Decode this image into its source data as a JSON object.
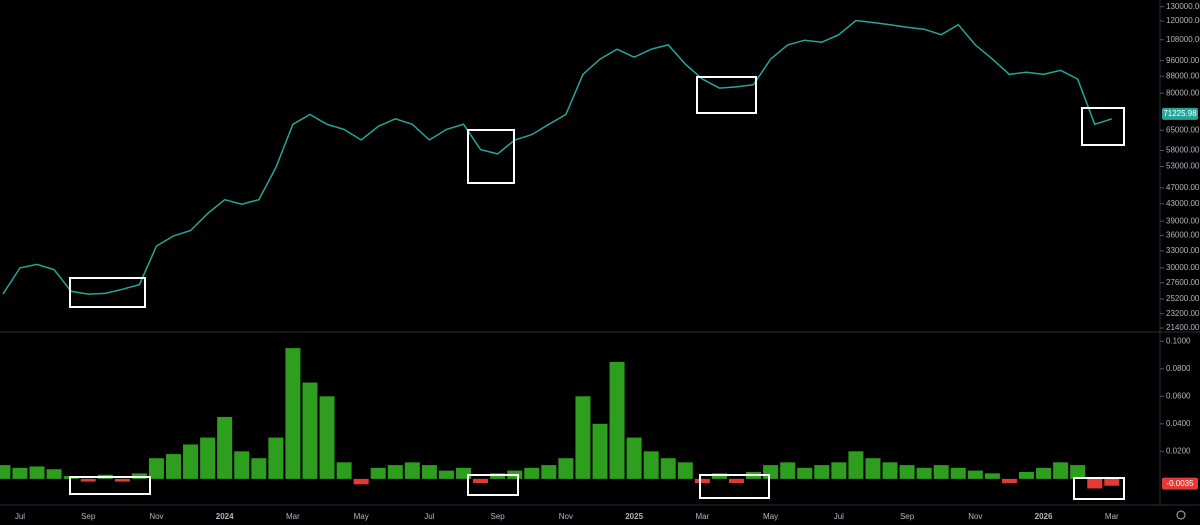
{
  "chart_data": [
    {
      "type": "line",
      "log_scale": true,
      "grid": false,
      "color": "#26a69a",
      "values": [
        25900,
        30000,
        30600,
        29700,
        26300,
        25900,
        26000,
        26600,
        27300,
        33900,
        35900,
        37000,
        40700,
        44000,
        42900,
        44000,
        52700,
        67200,
        71000,
        67200,
        65300,
        61500,
        66400,
        69300,
        67200,
        61500,
        65300,
        67200,
        58300,
        56900,
        61500,
        63400,
        67200,
        71000,
        88900,
        96900,
        102400,
        97900,
        102400,
        104900,
        94200,
        86600,
        82300,
        82900,
        83900,
        96900,
        104900,
        107700,
        106500,
        111100,
        120300,
        119000,
        117500,
        115800,
        114600,
        111100,
        117500,
        104900,
        96900,
        88900,
        90000,
        88900,
        91000,
        86600,
        67200,
        69300
      ],
      "ylim": [
        21050,
        135000
      ],
      "yticks": [
        {
          "value": 130000,
          "label": "130000.00"
        },
        {
          "value": 120000,
          "label": "120000.00"
        },
        {
          "value": 108000,
          "label": "108000.00"
        },
        {
          "value": 96000,
          "label": "96000.00"
        },
        {
          "value": 88000,
          "label": "88000.00"
        },
        {
          "value": 80000,
          "label": "80000.00"
        },
        {
          "value": 65000,
          "label": "65000.00"
        },
        {
          "value": 58000,
          "label": "58000.00"
        },
        {
          "value": 53000,
          "label": "53000.00"
        },
        {
          "value": 47000,
          "label": "47000.00"
        },
        {
          "value": 43000,
          "label": "43000.00"
        },
        {
          "value": 39000,
          "label": "39000.00"
        },
        {
          "value": 36000,
          "label": "36000.00"
        },
        {
          "value": 33000,
          "label": "33000.00"
        },
        {
          "value": 30000,
          "label": "30000.00"
        },
        {
          "value": 27600,
          "label": "27600.00"
        },
        {
          "value": 25200,
          "label": "25200.00"
        },
        {
          "value": 23200,
          "label": "23200.00"
        },
        {
          "value": 21400,
          "label": "21400.00"
        }
      ],
      "last_value": 71225.98
    },
    {
      "type": "bar",
      "grid": false,
      "color": "#2e9e1f",
      "negative_color": "#e53935",
      "categories": [
        null,
        "Jul",
        null,
        null,
        null,
        "Sep",
        null,
        null,
        null,
        "Nov",
        null,
        null,
        null,
        "2024",
        null,
        null,
        null,
        "Mar",
        null,
        null,
        null,
        "May",
        null,
        null,
        null,
        "Jul",
        null,
        null,
        null,
        "Sep",
        null,
        null,
        null,
        "Nov",
        null,
        null,
        null,
        "2025",
        null,
        null,
        null,
        "Mar",
        null,
        null,
        null,
        "May",
        null,
        null,
        null,
        "Jul",
        null,
        null,
        null,
        "Sep",
        null,
        null,
        null,
        "Nov",
        null,
        null,
        null,
        "2026",
        null,
        null,
        null,
        "Mar"
      ],
      "values": [
        0.01,
        0.008,
        0.009,
        0.007,
        0.002,
        -0.002,
        0.003,
        -0.002,
        0.004,
        0.015,
        0.018,
        0.025,
        0.03,
        0.045,
        0.02,
        0.015,
        0.03,
        0.095,
        0.07,
        0.06,
        0.012,
        -0.004,
        0.008,
        0.01,
        0.012,
        0.01,
        0.006,
        0.008,
        -0.003,
        0.004,
        0.006,
        0.008,
        0.01,
        0.015,
        0.06,
        0.04,
        0.085,
        0.03,
        0.02,
        0.015,
        0.012,
        -0.003,
        0.004,
        -0.003,
        0.005,
        0.01,
        0.012,
        0.008,
        0.01,
        0.012,
        0.02,
        0.015,
        0.012,
        0.01,
        0.008,
        0.01,
        0.008,
        0.006,
        0.004,
        -0.003,
        0.005,
        0.008,
        0.012,
        0.01,
        -0.007,
        -0.005
      ],
      "ylim": [
        -0.019,
        0.106
      ],
      "yticks": [
        {
          "value": 0.1,
          "label": "0.1000"
        },
        {
          "value": 0.08,
          "label": "0.0800"
        },
        {
          "value": 0.06,
          "label": "0.0600"
        },
        {
          "value": 0.04,
          "label": "0.0400"
        },
        {
          "value": 0.02,
          "label": "0.0200"
        }
      ],
      "last_value": -0.0035
    }
  ]
}
